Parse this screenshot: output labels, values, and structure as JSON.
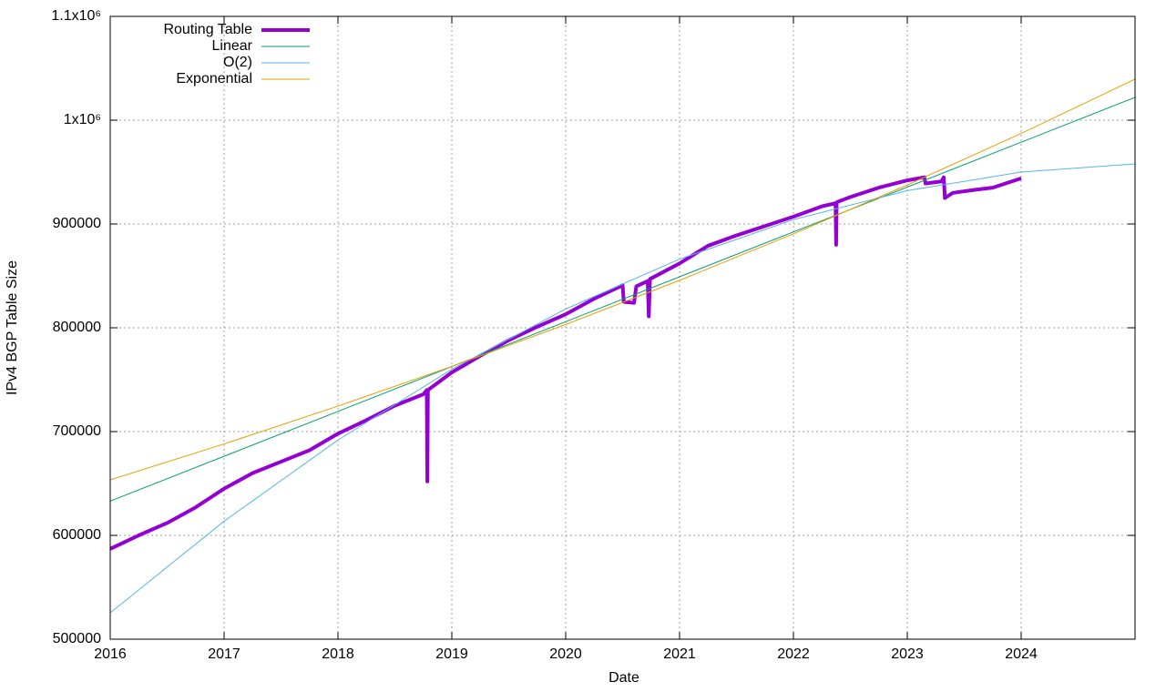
{
  "chart_data": {
    "type": "line",
    "xlabel": "Date",
    "ylabel": "IPv4 BGP Table Size",
    "xlim": [
      2016,
      2025
    ],
    "ylim": [
      500000,
      1100000
    ],
    "xticks": [
      2016,
      2017,
      2018,
      2019,
      2020,
      2021,
      2022,
      2023,
      2024
    ],
    "yticks": [
      500000,
      600000,
      700000,
      800000,
      900000,
      {
        "value": 1000000,
        "label": "1x10⁶"
      },
      {
        "value": 1100000,
        "label": "1.1x10⁶"
      }
    ],
    "grid": true,
    "legend": "top-left",
    "series": [
      {
        "name": "Routing Table",
        "color": "#9400d3",
        "width": 4,
        "x": [
          2016.0,
          2016.25,
          2016.5,
          2016.75,
          2017.0,
          2017.25,
          2017.5,
          2017.75,
          2018.0,
          2018.25,
          2018.5,
          2018.75,
          2018.78,
          2018.785,
          2018.79,
          2019.0,
          2019.25,
          2019.5,
          2019.75,
          2020.0,
          2020.25,
          2020.5,
          2020.51,
          2020.6,
          2020.62,
          2020.72,
          2020.73,
          2020.74,
          2021.0,
          2021.25,
          2021.5,
          2021.75,
          2022.0,
          2022.25,
          2022.37,
          2022.375,
          2022.38,
          2022.5,
          2022.75,
          2023.0,
          2023.15,
          2023.16,
          2023.3,
          2023.32,
          2023.33,
          2023.4,
          2023.6,
          2023.75,
          2024.0
        ],
        "values": [
          587000,
          600000,
          612000,
          627000,
          645000,
          660000,
          671000,
          682000,
          698000,
          711000,
          725000,
          736000,
          740000,
          652000,
          740000,
          757000,
          773000,
          788000,
          801000,
          813000,
          828000,
          841000,
          825000,
          824000,
          840000,
          845000,
          811000,
          847000,
          862000,
          879000,
          889000,
          898000,
          907000,
          917000,
          920000,
          880000,
          921000,
          926000,
          935000,
          942000,
          945000,
          939000,
          941000,
          945000,
          925000,
          930000,
          933000,
          935000,
          944000
        ]
      },
      {
        "name": "Linear",
        "color": "#009e73",
        "width": 1,
        "x": [
          2016,
          2025
        ],
        "values": [
          633000,
          1022000
        ]
      },
      {
        "name": "O(2)",
        "color": "#56b4e9",
        "width": 1,
        "x": [
          2016,
          2017,
          2018,
          2019,
          2020,
          2021,
          2022,
          2023,
          2024,
          2025
        ],
        "values": [
          525400,
          613648,
          691848,
          760000,
          818104,
          866160,
          904168,
          932128,
          950040,
          957904
        ]
      },
      {
        "name": "Exponential",
        "color": "#e69f00",
        "width": 1,
        "x": [
          2016,
          2017,
          2018,
          2019,
          2020,
          2021,
          2022,
          2023,
          2024,
          2025
        ],
        "values": [
          653500,
          688100,
          724500,
          762800,
          803200,
          845700,
          890500,
          937600,
          987200,
          1039500
        ]
      }
    ]
  }
}
